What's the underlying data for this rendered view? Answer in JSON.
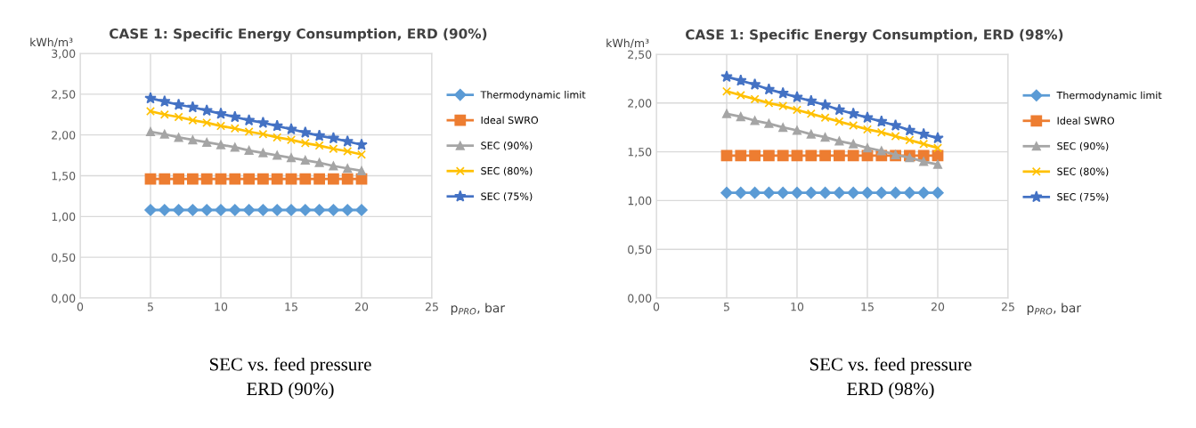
{
  "chart_data": [
    {
      "type": "line",
      "title": "CASE 1: Specific Energy Consumption, ERD (90%)",
      "ylabel": "kWh/m³",
      "xlabel": "p$_{PRO}$, bar",
      "x": [
        5,
        6,
        7,
        8,
        9,
        10,
        11,
        12,
        13,
        14,
        15,
        16,
        17,
        18,
        19,
        20
      ],
      "xlim": [
        0,
        25
      ],
      "xticks": [
        0,
        5,
        10,
        15,
        20,
        25
      ],
      "ylim": [
        0,
        3
      ],
      "yticks": [
        {
          "value": 0,
          "label": "0,00"
        },
        {
          "value": 0.5,
          "label": "0,50"
        },
        {
          "value": 1,
          "label": "1,00"
        },
        {
          "value": 1.5,
          "label": "1,50"
        },
        {
          "value": 2,
          "label": "2,00"
        },
        {
          "value": 2.5,
          "label": "2,50"
        },
        {
          "value": 3,
          "label": "3,00"
        }
      ],
      "grid": true,
      "legend": "right",
      "line_style": "solid",
      "series": [
        {
          "name": "Thermodynamic limit",
          "color": "#5b9bd5",
          "marker": "diamond",
          "values": [
            1.08,
            1.08,
            1.08,
            1.08,
            1.08,
            1.08,
            1.08,
            1.08,
            1.08,
            1.08,
            1.08,
            1.08,
            1.08,
            1.08,
            1.08,
            1.08
          ]
        },
        {
          "name": "Ideal SWRO",
          "color": "#ed7d31",
          "marker": "square",
          "values": [
            1.46,
            1.46,
            1.46,
            1.46,
            1.46,
            1.46,
            1.46,
            1.46,
            1.46,
            1.46,
            1.46,
            1.46,
            1.46,
            1.46,
            1.46,
            1.46
          ]
        },
        {
          "name": "SEC (90%)",
          "color": "#a5a5a5",
          "marker": "triangle",
          "values": [
            2.04,
            2.01,
            1.97,
            1.94,
            1.91,
            1.88,
            1.85,
            1.81,
            1.78,
            1.75,
            1.72,
            1.69,
            1.66,
            1.62,
            1.59,
            1.56
          ]
        },
        {
          "name": "SEC (80%)",
          "color": "#ffc000",
          "marker": "cross",
          "values": [
            2.29,
            2.25,
            2.22,
            2.18,
            2.15,
            2.11,
            2.08,
            2.04,
            2.01,
            1.97,
            1.94,
            1.9,
            1.87,
            1.83,
            1.8,
            1.76
          ]
        },
        {
          "name": "SEC (75%)",
          "color": "#4472c4",
          "marker": "star",
          "values": [
            2.45,
            2.41,
            2.37,
            2.34,
            2.3,
            2.26,
            2.22,
            2.18,
            2.15,
            2.11,
            2.07,
            2.03,
            1.99,
            1.96,
            1.92,
            1.88
          ]
        }
      ],
      "annotations": [
        "SEC vs. feed pressure\nERD (90%)"
      ]
    },
    {
      "type": "line",
      "title": "CASE 1: Specific Energy Consumption, ERD (98%)",
      "ylabel": "kWh/m³",
      "xlabel": "p$_{PRO}$, bar",
      "x": [
        5,
        6,
        7,
        8,
        9,
        10,
        11,
        12,
        13,
        14,
        15,
        16,
        17,
        18,
        19,
        20
      ],
      "xlim": [
        0,
        25
      ],
      "xticks": [
        0,
        5,
        10,
        15,
        20,
        25
      ],
      "ylim": [
        0,
        2.5
      ],
      "yticks": [
        {
          "value": 0,
          "label": "0,00"
        },
        {
          "value": 0.5,
          "label": "0,50"
        },
        {
          "value": 1,
          "label": "1,00"
        },
        {
          "value": 1.5,
          "label": "1,50"
        },
        {
          "value": 2,
          "label": "2,00"
        },
        {
          "value": 2.5,
          "label": "2,50"
        }
      ],
      "grid": true,
      "legend": "right",
      "line_style": "solid",
      "series": [
        {
          "name": "Thermodynamic limit",
          "color": "#5b9bd5",
          "marker": "diamond",
          "values": [
            1.08,
            1.08,
            1.08,
            1.08,
            1.08,
            1.08,
            1.08,
            1.08,
            1.08,
            1.08,
            1.08,
            1.08,
            1.08,
            1.08,
            1.08,
            1.08
          ]
        },
        {
          "name": "Ideal SWRO",
          "color": "#ed7d31",
          "marker": "square",
          "values": [
            1.46,
            1.46,
            1.46,
            1.46,
            1.46,
            1.46,
            1.46,
            1.46,
            1.46,
            1.46,
            1.46,
            1.46,
            1.46,
            1.46,
            1.46,
            1.46
          ]
        },
        {
          "name": "SEC (90%)",
          "color": "#a5a5a5",
          "marker": "triangle",
          "values": [
            1.89,
            1.86,
            1.82,
            1.79,
            1.75,
            1.72,
            1.68,
            1.65,
            1.61,
            1.58,
            1.54,
            1.51,
            1.47,
            1.44,
            1.4,
            1.37
          ]
        },
        {
          "name": "SEC (80%)",
          "color": "#ffc000",
          "marker": "cross",
          "values": [
            2.12,
            2.08,
            2.04,
            2.0,
            1.97,
            1.93,
            1.89,
            1.85,
            1.81,
            1.77,
            1.73,
            1.7,
            1.66,
            1.62,
            1.58,
            1.54
          ]
        },
        {
          "name": "SEC (75%)",
          "color": "#4472c4",
          "marker": "star",
          "values": [
            2.27,
            2.23,
            2.19,
            2.14,
            2.1,
            2.06,
            2.02,
            1.98,
            1.93,
            1.89,
            1.85,
            1.81,
            1.77,
            1.72,
            1.68,
            1.64
          ]
        }
      ],
      "annotations": [
        "SEC vs. feed pressure\nERD (98%)"
      ]
    }
  ]
}
